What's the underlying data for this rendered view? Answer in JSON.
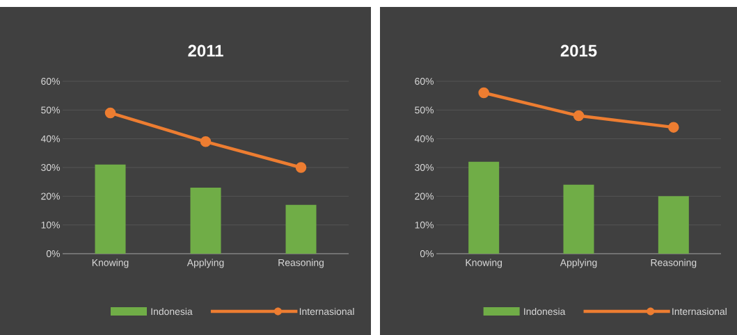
{
  "chart_data": [
    {
      "type": "bar",
      "title": "2011",
      "categories": [
        "Knowing",
        "Applying",
        "Reasoning"
      ],
      "series": [
        {
          "name": "Indonesia",
          "color": "#70ad47",
          "values": [
            31,
            23,
            17
          ]
        },
        {
          "name": "Internasional",
          "type": "line",
          "color": "#ed7d31",
          "marker": "circle",
          "values": [
            49,
            39,
            30
          ]
        }
      ],
      "ylim": [
        0,
        60
      ],
      "yticks": [
        {
          "value": 0,
          "label": "0%"
        },
        {
          "value": 10,
          "label": "10%"
        },
        {
          "value": 20,
          "label": "20%"
        },
        {
          "value": 30,
          "label": "30%"
        },
        {
          "value": 40,
          "label": "40%"
        },
        {
          "value": 50,
          "label": "50%"
        },
        {
          "value": 60,
          "label": "60%"
        }
      ],
      "grid": "y",
      "legend": "bottom"
    },
    {
      "type": "bar",
      "title": "2015",
      "categories": [
        "Knowing",
        "Applying",
        "Reasoning"
      ],
      "series": [
        {
          "name": "Indonesia",
          "color": "#70ad47",
          "values": [
            32,
            24,
            20
          ]
        },
        {
          "name": "Internasional",
          "type": "line",
          "color": "#ed7d31",
          "marker": "circle",
          "values": [
            56,
            48,
            44
          ]
        }
      ],
      "ylim": [
        0,
        60
      ],
      "yticks": [
        {
          "value": 0,
          "label": "0%"
        },
        {
          "value": 10,
          "label": "10%"
        },
        {
          "value": 20,
          "label": "20%"
        },
        {
          "value": 30,
          "label": "30%"
        },
        {
          "value": 40,
          "label": "40%"
        },
        {
          "value": 50,
          "label": "50%"
        },
        {
          "value": 60,
          "label": "60%"
        }
      ],
      "grid": "y",
      "legend": "bottom"
    }
  ]
}
